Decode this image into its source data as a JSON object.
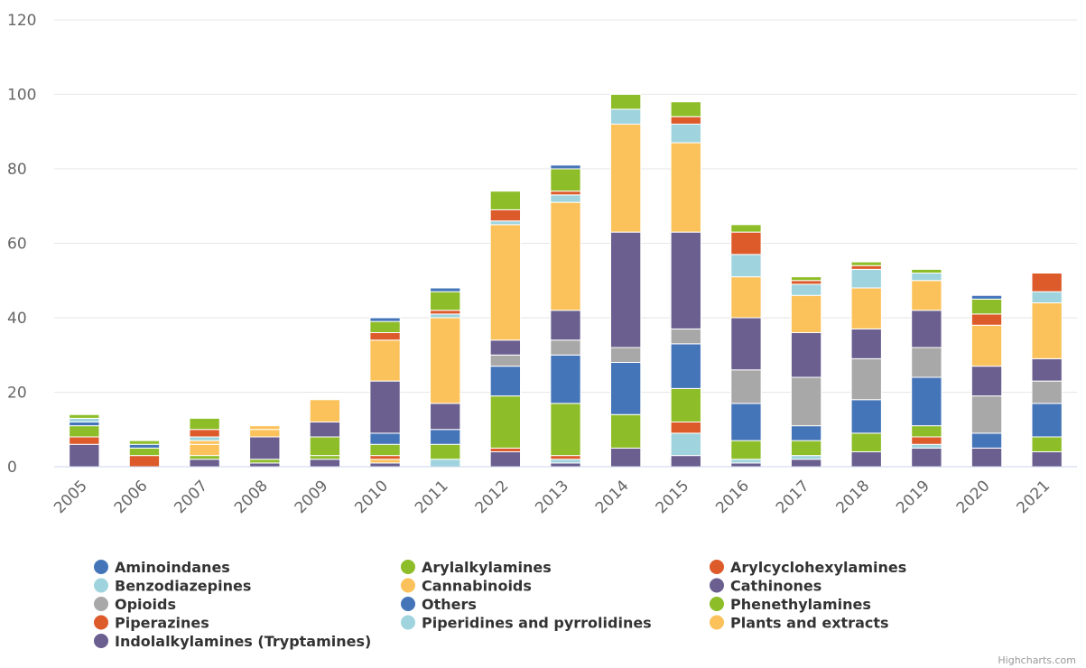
{
  "chart_data": {
    "type": "bar",
    "stacked": true,
    "categories": [
      "2005",
      "2006",
      "2007",
      "2008",
      "2009",
      "2010",
      "2011",
      "2012",
      "2013",
      "2014",
      "2015",
      "2016",
      "2017",
      "2018",
      "2019",
      "2020",
      "2021"
    ],
    "ylim": [
      0,
      120
    ],
    "yticks": [
      0,
      20,
      40,
      60,
      80,
      100,
      120
    ],
    "grid": true,
    "legend_position": "bottom",
    "credit": "Highcharts.com",
    "series": [
      {
        "name": "Indolalkylamines (Tryptamines)",
        "color": "#6a5f8f",
        "values": [
          6,
          0,
          2,
          1,
          2,
          1,
          0,
          4,
          1,
          5,
          3,
          1,
          2,
          4,
          5,
          5,
          4
        ]
      },
      {
        "name": "Piperidines and pyrrolidines",
        "color": "#9fd4de",
        "values": [
          0,
          0,
          0,
          0,
          0,
          0,
          2,
          0,
          1,
          0,
          0,
          1,
          1,
          0,
          0,
          0,
          0
        ]
      },
      {
        "name": "Benzodiazepines",
        "color": "#9fd4de",
        "values": [
          0,
          0,
          0,
          0,
          0,
          0,
          0,
          0,
          0,
          0,
          6,
          0,
          0,
          0,
          1,
          0,
          0
        ]
      },
      {
        "name": "Piperazines",
        "color": "#dd5a2b",
        "values": [
          0,
          0,
          0,
          0,
          0,
          0,
          0,
          0,
          1,
          0,
          0,
          0,
          0,
          0,
          0,
          0,
          0
        ]
      },
      {
        "name": "Arylalkylamines",
        "color": "#8dbd28",
        "values": [
          0,
          0,
          0,
          0,
          1,
          0,
          0,
          0,
          0,
          0,
          0,
          0,
          0,
          0,
          0,
          0,
          0
        ]
      },
      {
        "name": "Plants and extracts",
        "color": "#fbc25b",
        "values": [
          0,
          0,
          0,
          0,
          0,
          1,
          0,
          0,
          0,
          0,
          0,
          0,
          0,
          0,
          0,
          0,
          0
        ]
      },
      {
        "name": "Arylcyclohexylamines",
        "color": "#dd5a2b",
        "values": [
          2,
          3,
          0,
          0,
          0,
          1,
          0,
          1,
          0,
          0,
          3,
          0,
          0,
          0,
          2,
          0,
          0
        ]
      },
      {
        "name": "Phenethylamines",
        "color": "#8dbd28",
        "values": [
          3,
          2,
          1,
          1,
          5,
          3,
          4,
          14,
          14,
          9,
          9,
          5,
          4,
          5,
          3,
          0,
          4
        ]
      },
      {
        "name": "Others",
        "color": "#4575b9",
        "values": [
          0,
          0,
          0,
          0,
          0,
          3,
          4,
          8,
          13,
          14,
          12,
          10,
          4,
          9,
          13,
          4,
          9
        ]
      },
      {
        "name": "Opioids",
        "color": "#a8a8a8",
        "values": [
          0,
          0,
          0,
          0,
          0,
          0,
          0,
          3,
          4,
          4,
          4,
          9,
          13,
          11,
          8,
          10,
          6
        ]
      },
      {
        "name": "Cathinones",
        "color": "#6a5f8f",
        "values": [
          0,
          0,
          0,
          6,
          4,
          14,
          7,
          4,
          8,
          31,
          26,
          14,
          12,
          8,
          10,
          8,
          6
        ]
      },
      {
        "name": "Cannabinoids",
        "color": "#fbc25b",
        "values": [
          0,
          0,
          3,
          2,
          6,
          11,
          23,
          31,
          29,
          29,
          24,
          11,
          10,
          11,
          8,
          11,
          15
        ]
      },
      {
        "name": "Aminoindanes",
        "color": "#4575b9",
        "values": [
          1,
          1,
          0,
          0,
          0,
          0,
          0,
          0,
          0,
          0,
          0,
          0,
          0,
          0,
          0,
          0,
          0
        ]
      },
      {
        "name": "Plants and extracts (2)",
        "color": "#fbc25b",
        "values": [
          0,
          0,
          1,
          1,
          0,
          0,
          0,
          0,
          0,
          0,
          0,
          0,
          0,
          0,
          0,
          0,
          0
        ]
      },
      {
        "name": "Piperidines and pyrrolidines (2)",
        "color": "#9fd4de",
        "values": [
          1,
          0,
          1,
          0,
          0,
          0,
          1,
          1,
          2,
          4,
          5,
          6,
          3,
          5,
          2,
          0,
          3
        ]
      },
      {
        "name": "Piperazines (2)",
        "color": "#dd5a2b",
        "values": [
          0,
          0,
          2,
          0,
          0,
          2,
          1,
          3,
          1,
          0,
          2,
          6,
          1,
          1,
          0,
          3,
          5
        ]
      },
      {
        "name": "Arylalkylamines (2)",
        "color": "#8dbd28",
        "values": [
          1,
          1,
          3,
          0,
          0,
          3,
          5,
          5,
          6,
          4,
          4,
          2,
          1,
          1,
          1,
          4,
          0
        ]
      },
      {
        "name": "Aminoindanes (2)",
        "color": "#4575b9",
        "values": [
          0,
          0,
          0,
          0,
          0,
          1,
          1,
          0,
          1,
          0,
          0,
          0,
          0,
          0,
          0,
          1,
          0
        ]
      }
    ],
    "legend": [
      {
        "label": "Aminoindanes",
        "color": "#4575b9"
      },
      {
        "label": "Arylalkylamines",
        "color": "#8dbd28"
      },
      {
        "label": "Arylcyclohexylamines",
        "color": "#dd5a2b"
      },
      {
        "label": "Benzodiazepines",
        "color": "#9fd4de"
      },
      {
        "label": "Cannabinoids",
        "color": "#fbc25b"
      },
      {
        "label": "Cathinones",
        "color": "#6a5f8f"
      },
      {
        "label": "Opioids",
        "color": "#a8a8a8"
      },
      {
        "label": "Others",
        "color": "#4575b9"
      },
      {
        "label": "Phenethylamines",
        "color": "#8dbd28"
      },
      {
        "label": "Piperazines",
        "color": "#dd5a2b"
      },
      {
        "label": "Piperidines and pyrrolidines",
        "color": "#9fd4de"
      },
      {
        "label": "Plants and extracts",
        "color": "#fbc25b"
      },
      {
        "label": "Indolalkylamines (Tryptamines)",
        "color": "#6a5f8f"
      }
    ]
  }
}
